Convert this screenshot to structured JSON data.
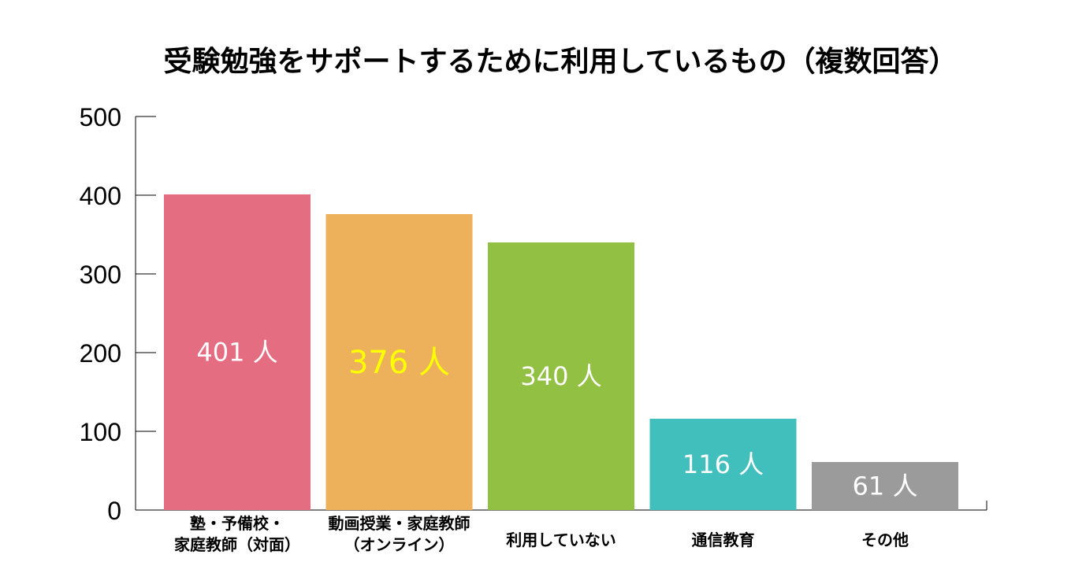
{
  "chart_data": {
    "type": "bar",
    "title": "受験勉強をサポートするために利用しているもの（複数回答）",
    "categories": [
      [
        "塾・予備校・",
        "家庭教師（対面）"
      ],
      [
        "動画授業・家庭教師",
        "（オンライン）"
      ],
      [
        "利用していない"
      ],
      [
        "通信教育"
      ],
      [
        "その他"
      ]
    ],
    "values": [
      401,
      376,
      340,
      116,
      61
    ],
    "data_labels": [
      "401 人",
      "376 人",
      "340 人",
      "116 人",
      "61 人"
    ],
    "colors": [
      "#e56d82",
      "#ecb15a",
      "#92c043",
      "#40bfbc",
      "#9b9b9b"
    ],
    "label_colors": [
      "#ffffff",
      "#ffff00",
      "#ffffff",
      "#ffffff",
      "#ffffff"
    ],
    "yticks": [
      0,
      100,
      200,
      300,
      400,
      500
    ],
    "ylim": [
      0,
      500
    ],
    "xlabel": "",
    "ylabel": "",
    "grid": false,
    "legend": "none"
  }
}
